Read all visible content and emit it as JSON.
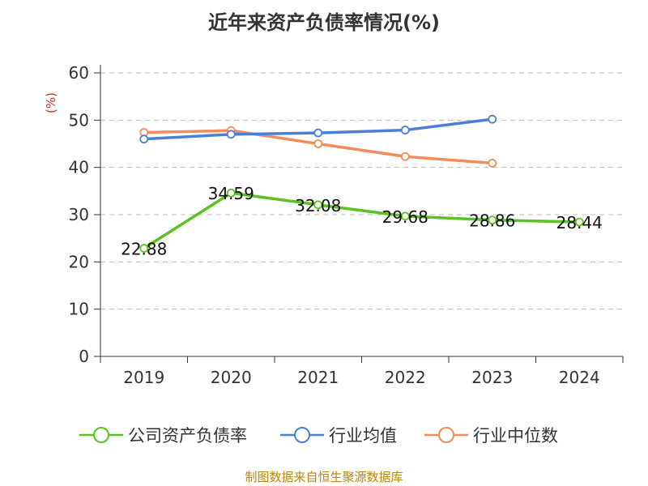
{
  "chart_data": {
    "type": "line",
    "title": "近年来资产负债率情况(%)",
    "ylabel": "(%)",
    "xlabel": "",
    "categories": [
      "2019",
      "2020",
      "2021",
      "2022",
      "2023",
      "2024"
    ],
    "ylim": [
      0,
      60
    ],
    "yticks": [
      0,
      10,
      20,
      30,
      40,
      50,
      60
    ],
    "grid": true,
    "legend_position": "bottom",
    "series": [
      {
        "name": "公司资产负债率",
        "color": "#5cc220",
        "values": [
          22.88,
          34.59,
          32.08,
          29.68,
          28.86,
          28.44
        ],
        "data_labels": [
          "22.88",
          "34.59",
          "32.08",
          "29.68",
          "28.86",
          "28.44"
        ]
      },
      {
        "name": "行业均值",
        "color": "#4a7fd6",
        "values": [
          46.0,
          47.0,
          47.3,
          47.9,
          50.2,
          null
        ]
      },
      {
        "name": "行业中位数",
        "color": "#f28c5a",
        "values": [
          47.4,
          47.8,
          45.0,
          42.3,
          40.9,
          null
        ]
      }
    ]
  },
  "footer": {
    "source": "制图数据来自恒生聚源数据库"
  },
  "colors": {
    "axis": "#333333",
    "grid": "#bbbbbb",
    "ylabel": "#d62728",
    "source": "#b8860b"
  }
}
